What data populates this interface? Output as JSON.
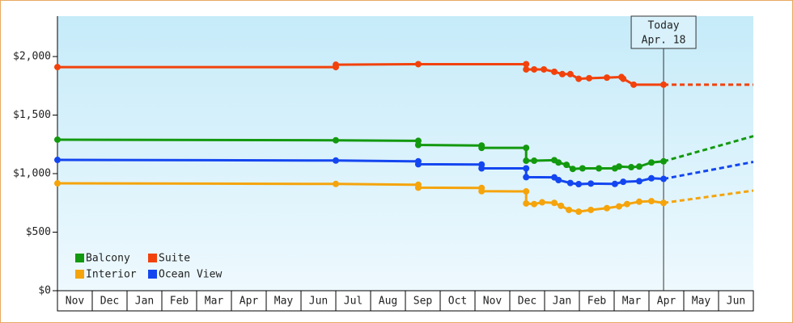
{
  "chart_data": {
    "type": "line",
    "categories": [
      "Nov",
      "Dec",
      "Jan",
      "Feb",
      "Mar",
      "Apr",
      "May",
      "Jun",
      "Jul",
      "Aug",
      "Sep",
      "Oct",
      "Nov",
      "Dec",
      "Jan",
      "Feb",
      "Mar",
      "Apr",
      "May",
      "Jun"
    ],
    "xlim": [
      0,
      20
    ],
    "ylim": [
      0,
      2345
    ],
    "yticks": [
      {
        "value": 0,
        "label": "$0"
      },
      {
        "value": 500,
        "label": "$500"
      },
      {
        "value": 1000,
        "label": "$1,000"
      },
      {
        "value": 1500,
        "label": "$1,500"
      },
      {
        "value": 2000,
        "label": "$2,000"
      }
    ],
    "annotation": {
      "text": [
        "Today",
        "Apr. 18"
      ],
      "x": 17.42
    },
    "series": [
      {
        "name": "Balcony",
        "color": "#13990f",
        "x": [
          0,
          8.0,
          10.37,
          10.37,
          12.19,
          12.19,
          13.47,
          13.47,
          13.7,
          14.28,
          14.4,
          14.63,
          14.81,
          15.09,
          15.56,
          16.02,
          16.14,
          16.49,
          16.72,
          17.07,
          17.42
        ],
        "values": [
          1290,
          1285,
          1280,
          1245,
          1240,
          1220,
          1220,
          1110,
          1110,
          1115,
          1095,
          1075,
          1040,
          1045,
          1045,
          1045,
          1060,
          1055,
          1060,
          1095,
          1105
        ],
        "forecast_x": [
          17.42,
          20
        ],
        "forecast_values": [
          1105,
          1320
        ]
      },
      {
        "name": "Suite",
        "color": "#f2420c",
        "x": [
          0,
          8.0,
          8.0,
          10.37,
          13.47,
          13.47,
          13.7,
          13.98,
          14.28,
          14.51,
          14.74,
          14.98,
          15.28,
          15.79,
          16.21,
          16.26,
          16.56,
          17.42
        ],
        "values": [
          1910,
          1910,
          1930,
          1935,
          1935,
          1890,
          1890,
          1890,
          1870,
          1850,
          1850,
          1810,
          1815,
          1820,
          1825,
          1810,
          1760,
          1760
        ],
        "forecast_x": [
          17.42,
          20
        ],
        "forecast_values": [
          1760,
          1760
        ]
      },
      {
        "name": "Interior",
        "color": "#f5a40c",
        "x": [
          0,
          8.0,
          10.37,
          10.37,
          12.19,
          12.19,
          13.47,
          13.47,
          13.7,
          13.93,
          14.28,
          14.47,
          14.7,
          14.98,
          15.33,
          15.79,
          16.14,
          16.37,
          16.72,
          17.07,
          17.42
        ],
        "values": [
          917,
          912,
          905,
          880,
          878,
          850,
          848,
          745,
          740,
          755,
          750,
          725,
          690,
          675,
          690,
          705,
          720,
          740,
          760,
          765,
          750
        ],
        "forecast_x": [
          17.42,
          20
        ],
        "forecast_values": [
          750,
          855
        ]
      },
      {
        "name": "Ocean View",
        "color": "#1446f0",
        "x": [
          0,
          8.0,
          10.37,
          10.37,
          12.19,
          12.19,
          13.47,
          13.47,
          14.28,
          14.4,
          14.74,
          14.98,
          15.33,
          16.02,
          16.26,
          16.72,
          17.07,
          17.42
        ],
        "values": [
          1117,
          1112,
          1105,
          1080,
          1078,
          1045,
          1045,
          970,
          968,
          945,
          920,
          910,
          915,
          912,
          930,
          935,
          960,
          955
        ],
        "forecast_x": [
          17.42,
          20
        ],
        "forecast_values": [
          955,
          1100
        ]
      }
    ]
  }
}
